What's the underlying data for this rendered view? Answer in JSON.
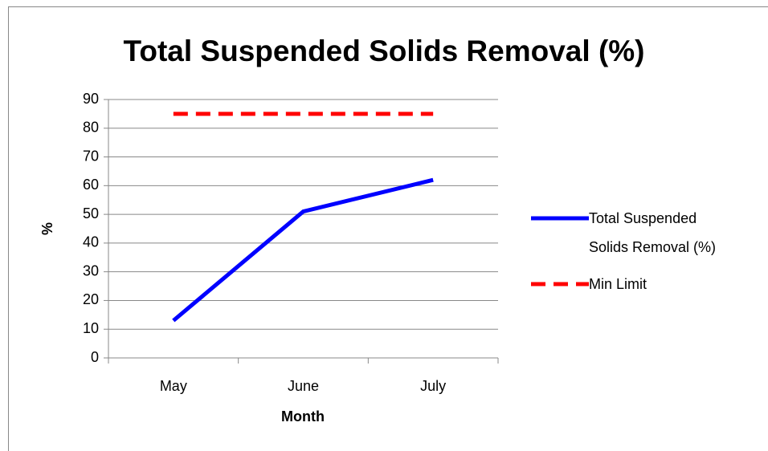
{
  "chart_data": {
    "type": "line",
    "title": "Total Suspended Solids Removal (%)",
    "x_label": "Month",
    "y_label": "%",
    "categories": [
      "May",
      "June",
      "July"
    ],
    "series": [
      {
        "name": "Total Suspended Solids Removal (%)",
        "color": "#0000ff",
        "line_style": "solid",
        "values": [
          13,
          51,
          62
        ]
      },
      {
        "name": "Min Limit",
        "color": "#ff0000",
        "line_style": "dashed",
        "values": [
          85,
          85,
          85
        ]
      }
    ],
    "ylim": [
      0,
      90
    ],
    "yticks": [
      0,
      10,
      20,
      30,
      40,
      50,
      60,
      70,
      80,
      90
    ],
    "grid": true,
    "legend": "right"
  }
}
